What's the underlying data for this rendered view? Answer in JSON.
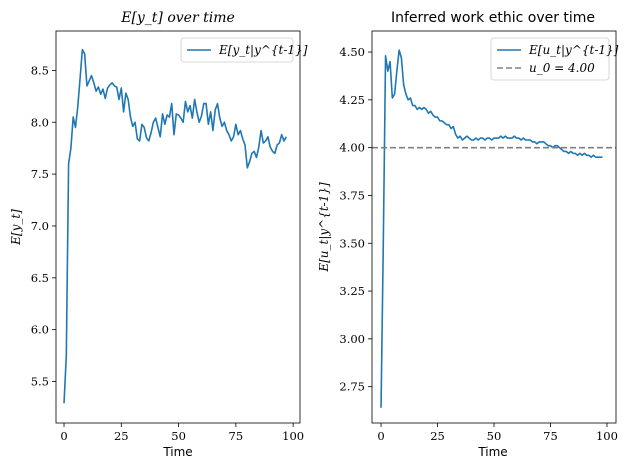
{
  "chart_data": [
    {
      "type": "line",
      "title": "E[y_t] over time",
      "xlabel": "Time",
      "ylabel": "E[y_t]",
      "xlim": [
        -3.5,
        103
      ],
      "ylim": [
        5.1,
        8.88
      ],
      "xticks": [
        0,
        25,
        50,
        75,
        100
      ],
      "yticks": [
        5.5,
        6.0,
        6.5,
        7.0,
        7.5,
        8.0,
        8.5
      ],
      "ytick_labels": [
        "5.5",
        "6.0",
        "6.5",
        "7.0",
        "7.5",
        "8.0",
        "8.5"
      ],
      "legend_position": "top-right",
      "grid": false,
      "series": [
        {
          "name": "E[y_t|y^{t-1}]",
          "color": "#1f77b4",
          "x": [
            0,
            1,
            2,
            3,
            4,
            5,
            6,
            7,
            8,
            9,
            10,
            11,
            12,
            13,
            14,
            15,
            16,
            17,
            18,
            19,
            20,
            21,
            22,
            23,
            24,
            25,
            26,
            27,
            28,
            29,
            30,
            31,
            32,
            33,
            34,
            35,
            36,
            37,
            38,
            39,
            40,
            41,
            42,
            43,
            44,
            45,
            46,
            47,
            48,
            49,
            50,
            51,
            52,
            53,
            54,
            55,
            56,
            57,
            58,
            59,
            60,
            61,
            62,
            63,
            64,
            65,
            66,
            67,
            68,
            69,
            70,
            71,
            72,
            73,
            74,
            75,
            76,
            77,
            78,
            79,
            80,
            81,
            82,
            83,
            84,
            85,
            86,
            87,
            88,
            89,
            90,
            91,
            92,
            93,
            94,
            95,
            96,
            97
          ],
          "y": [
            5.29,
            5.75,
            7.6,
            7.75,
            8.05,
            7.95,
            8.15,
            8.42,
            8.7,
            8.66,
            8.35,
            8.4,
            8.45,
            8.38,
            8.3,
            8.34,
            8.27,
            8.32,
            8.23,
            8.33,
            8.36,
            8.38,
            8.35,
            8.34,
            8.22,
            8.33,
            8.1,
            8.28,
            8.22,
            8.05,
            7.96,
            8.0,
            7.84,
            7.82,
            7.98,
            7.95,
            7.85,
            7.82,
            7.9,
            8.0,
            8.04,
            7.95,
            7.86,
            8.08,
            7.98,
            8.07,
            8.05,
            8.18,
            7.88,
            8.08,
            8.07,
            8.04,
            8.0,
            8.2,
            8.1,
            8.16,
            8.04,
            8.22,
            8.1,
            8.0,
            8.06,
            8.18,
            8.18,
            7.98,
            8.1,
            7.92,
            8.12,
            8.18,
            8.04,
            7.96,
            8.0,
            7.92,
            7.88,
            7.82,
            7.86,
            7.98,
            7.88,
            7.92,
            7.84,
            7.78,
            7.56,
            7.62,
            7.7,
            7.72,
            7.66,
            7.76,
            7.92,
            7.8,
            7.82,
            7.86,
            7.76,
            7.72,
            7.7,
            7.78,
            7.8,
            7.88,
            7.82,
            7.86
          ]
        }
      ]
    },
    {
      "type": "line",
      "title": "Inferred work ethic over time",
      "xlabel": "Time",
      "ylabel": "E[u_t|y^{t-1}]",
      "xlim": [
        -4,
        104
      ],
      "ylim": [
        2.56,
        4.61
      ],
      "xticks": [
        0,
        25,
        50,
        75,
        100
      ],
      "yticks": [
        2.75,
        3.0,
        3.25,
        3.5,
        3.75,
        4.0,
        4.25,
        4.5
      ],
      "ytick_labels": [
        "2.75",
        "3.00",
        "3.25",
        "3.50",
        "3.75",
        "4.00",
        "4.25",
        "4.50"
      ],
      "legend_position": "top-right",
      "grid": false,
      "series": [
        {
          "name": "E[u_t|y^{t-1}]",
          "color": "#1f77b4",
          "x": [
            0,
            1,
            2,
            3,
            4,
            5,
            6,
            7,
            8,
            9,
            10,
            11,
            12,
            13,
            14,
            15,
            16,
            17,
            18,
            19,
            20,
            21,
            22,
            23,
            24,
            25,
            26,
            27,
            28,
            29,
            30,
            31,
            32,
            33,
            34,
            35,
            36,
            37,
            38,
            39,
            40,
            41,
            42,
            43,
            44,
            45,
            46,
            47,
            48,
            49,
            50,
            51,
            52,
            53,
            54,
            55,
            56,
            57,
            58,
            59,
            60,
            61,
            62,
            63,
            64,
            65,
            66,
            67,
            68,
            69,
            70,
            71,
            72,
            73,
            74,
            75,
            76,
            77,
            78,
            79,
            80,
            81,
            82,
            83,
            84,
            85,
            86,
            87,
            88,
            89,
            90,
            91,
            92,
            93,
            94,
            95,
            96,
            97,
            98
          ],
          "y": [
            2.64,
            3.5,
            4.48,
            4.4,
            4.45,
            4.26,
            4.28,
            4.4,
            4.51,
            4.47,
            4.33,
            4.28,
            4.25,
            4.26,
            4.22,
            4.22,
            4.2,
            4.21,
            4.2,
            4.21,
            4.2,
            4.18,
            4.19,
            4.17,
            4.16,
            4.16,
            4.14,
            4.14,
            4.13,
            4.12,
            4.12,
            4.1,
            4.11,
            4.07,
            4.05,
            4.06,
            4.04,
            4.05,
            4.06,
            4.05,
            4.04,
            4.04,
            4.05,
            4.04,
            4.05,
            4.05,
            4.04,
            4.05,
            4.05,
            4.04,
            4.05,
            4.05,
            4.05,
            4.06,
            4.05,
            4.06,
            4.05,
            4.05,
            4.05,
            4.06,
            4.05,
            4.05,
            4.04,
            4.05,
            4.04,
            4.04,
            4.04,
            4.03,
            4.03,
            4.02,
            4.03,
            4.03,
            4.03,
            4.02,
            4.01,
            4.01,
            4.0,
            4.01,
            4.01,
            4.0,
            3.99,
            3.98,
            3.98,
            3.97,
            3.98,
            3.97,
            3.97,
            3.96,
            3.97,
            3.96,
            3.97,
            3.96,
            3.96,
            3.95,
            3.96,
            3.95,
            3.95,
            3.95,
            3.95
          ]
        },
        {
          "name": "u_0 = 4.00",
          "color": "#808080",
          "style": "dashed",
          "constant": 4.0
        }
      ]
    }
  ]
}
